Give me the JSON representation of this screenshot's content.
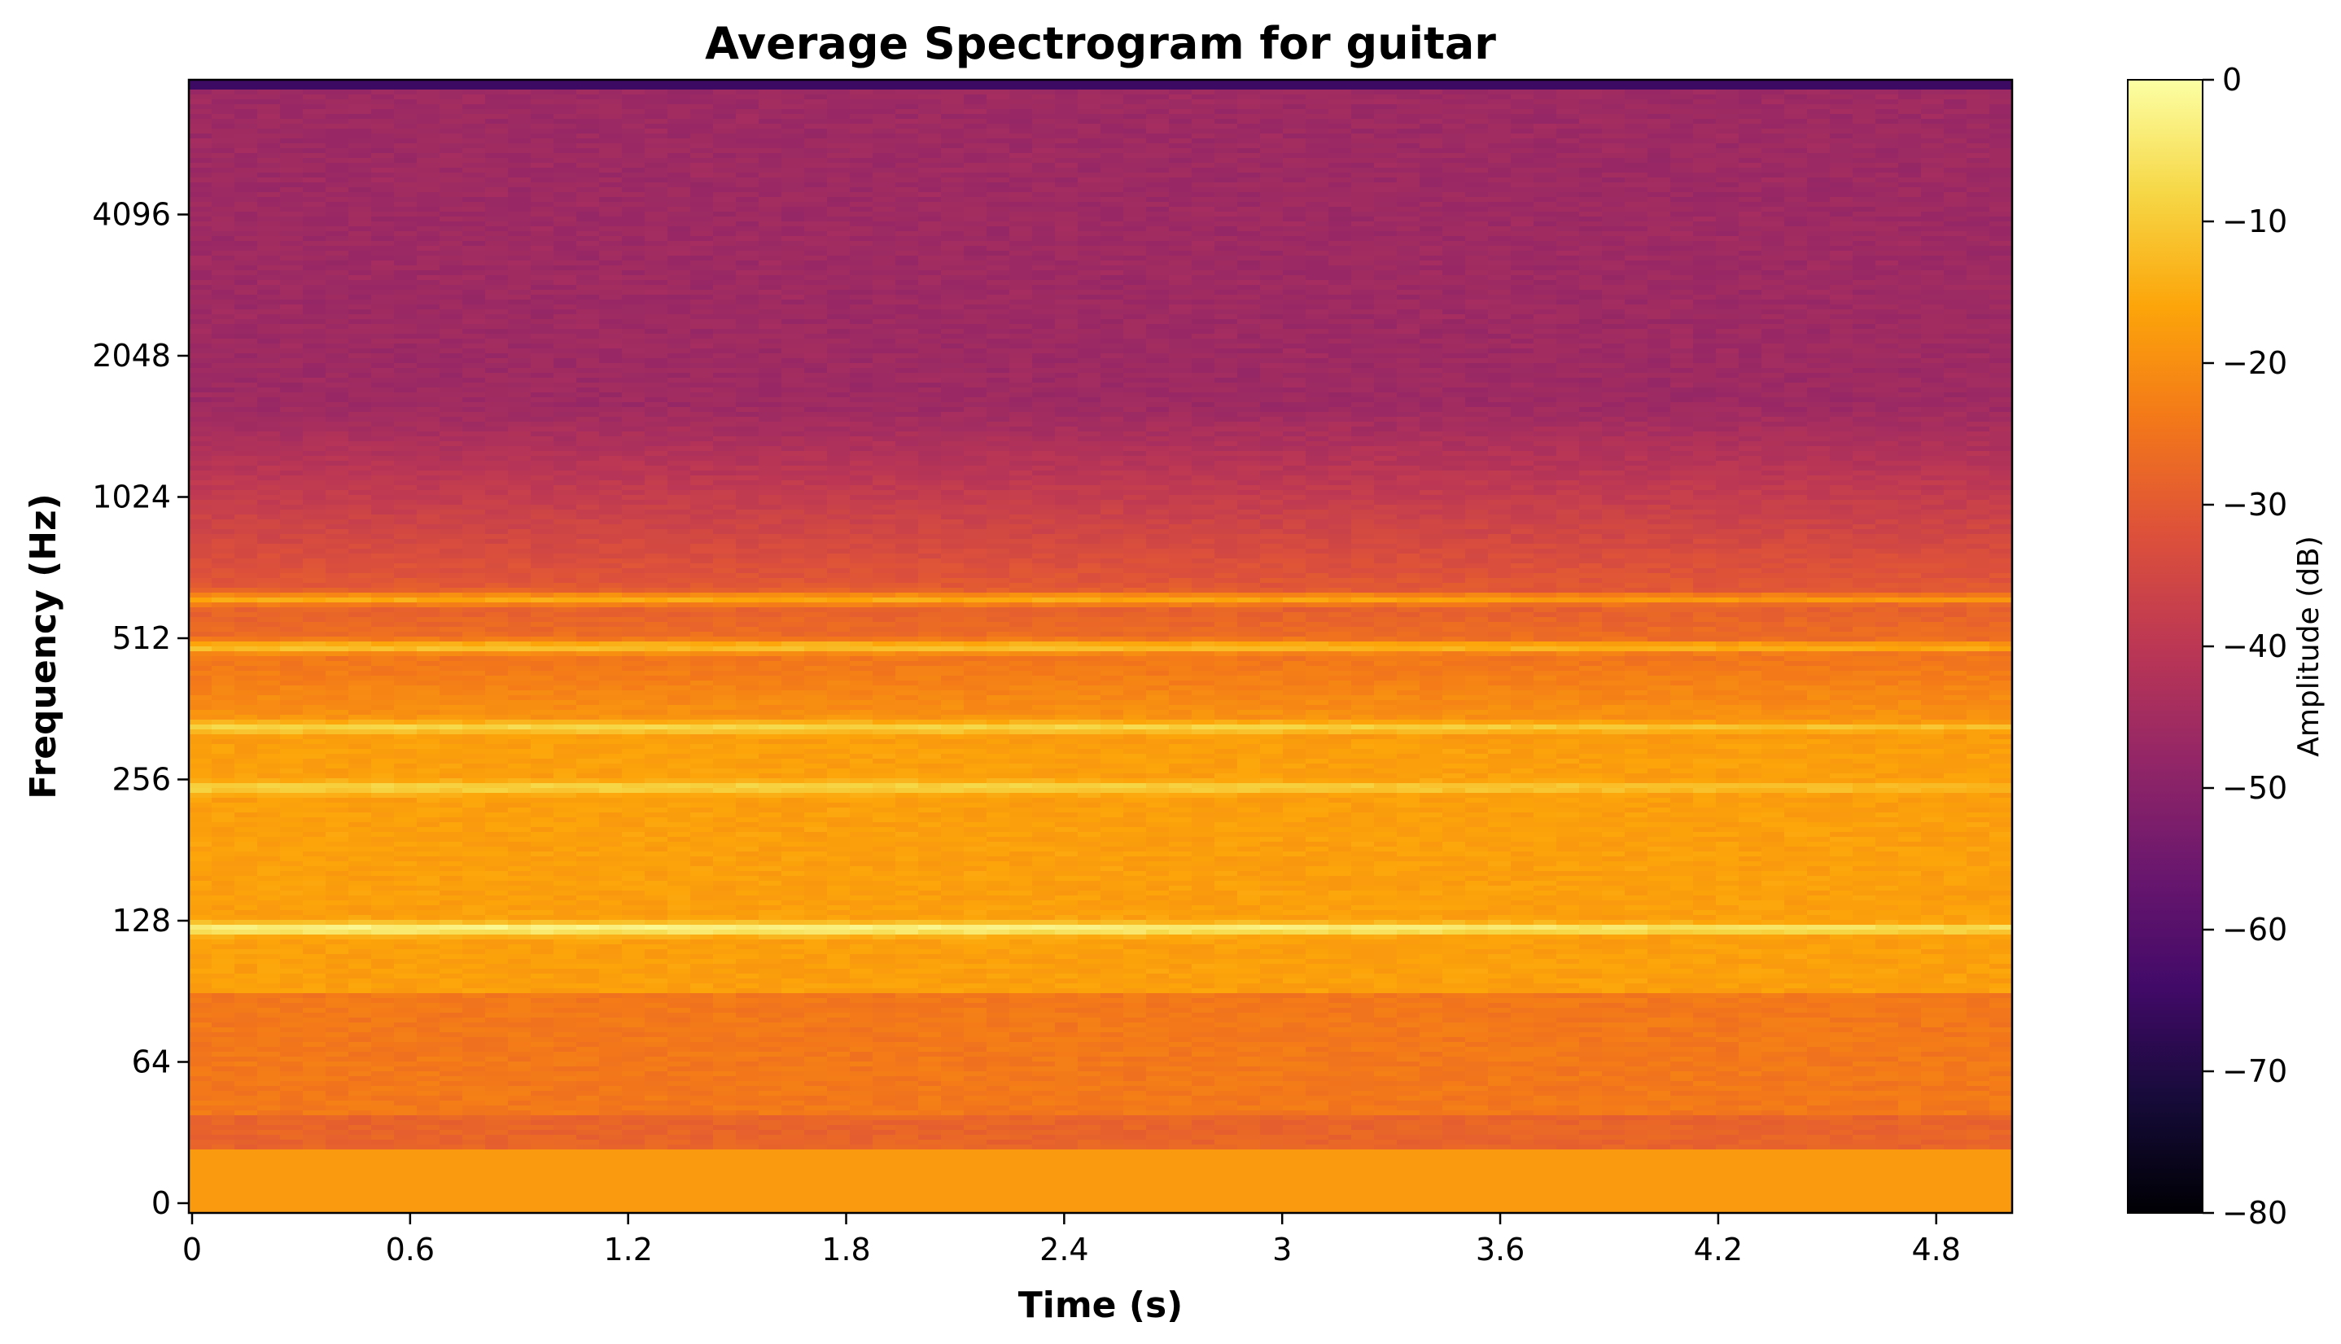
{
  "chart_data": {
    "type": "heatmap",
    "title": "Average Spectrogram for guitar",
    "xlabel": "Time (s)",
    "ylabel": "Frequency (Hz)",
    "xlim": [
      0,
      5.0
    ],
    "x_ticks": [
      0,
      0.6,
      1.2,
      1.8,
      2.4,
      3,
      3.6,
      4.2,
      4.8
    ],
    "x_tick_labels": [
      "0",
      "0.6",
      "1.2",
      "1.8",
      "2.4",
      "3",
      "3.6",
      "4.2",
      "4.8"
    ],
    "y_scale": "symlog",
    "ylim": [
      0,
      11025
    ],
    "y_ticks": [
      0,
      64,
      128,
      256,
      512,
      1024,
      2048,
      4096
    ],
    "y_tick_labels": [
      "0",
      "64",
      "128",
      "256",
      "512",
      "1024",
      "2048",
      "4096"
    ],
    "colorbar": {
      "label": "Amplitude (dB)",
      "range": [
        -80,
        0
      ],
      "ticks": [
        0,
        -10,
        -20,
        -30,
        -40,
        -50,
        -60,
        -70,
        -80
      ],
      "tick_labels": [
        "0",
        "−10",
        "−20",
        "−30",
        "−40",
        "−50",
        "−60",
        "−70",
        "−80"
      ],
      "colormap": "inferno"
    },
    "peaks": [
      {
        "frequency_hz": 123,
        "db": -2
      },
      {
        "frequency_hz": 246,
        "db": -8
      },
      {
        "frequency_hz": 330,
        "db": -8
      },
      {
        "frequency_hz": 490,
        "db": -11
      },
      {
        "frequency_hz": 620,
        "db": -15
      }
    ],
    "grid": false,
    "legend": "none"
  }
}
